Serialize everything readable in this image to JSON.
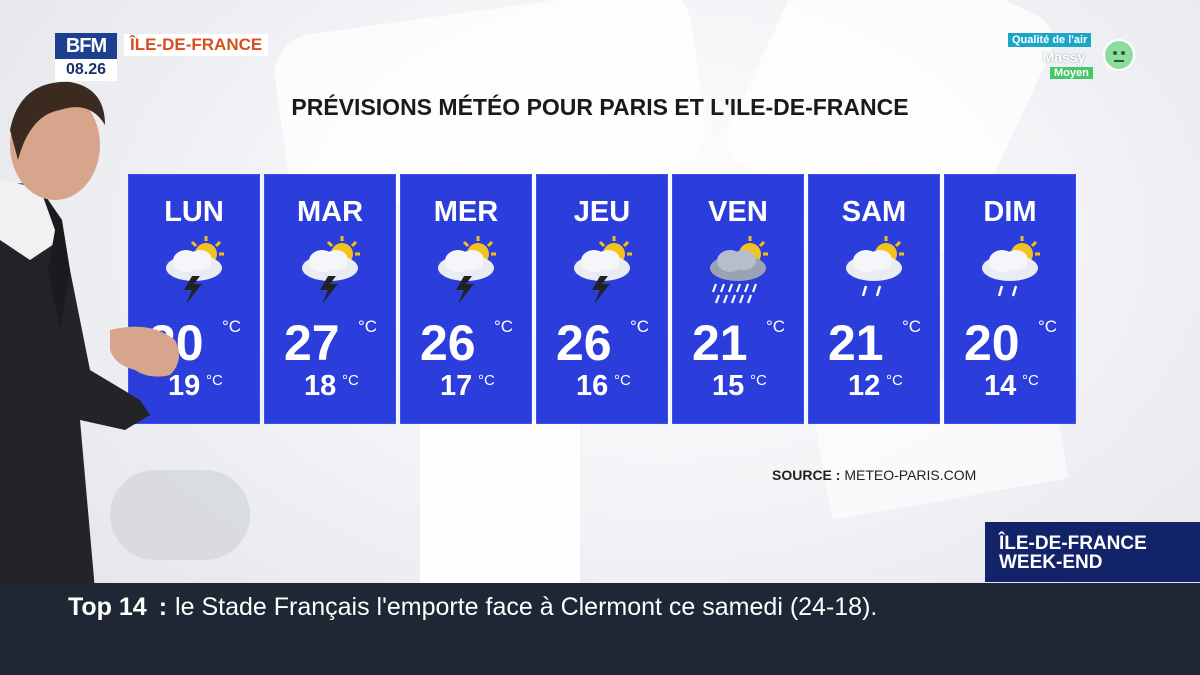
{
  "channel": {
    "logo": "BFM",
    "time": "08.26",
    "region": "ÎLE-DE-FRANCE"
  },
  "air_quality": {
    "title": "Qualité de l'air",
    "city": "Massy",
    "level": "Moyen",
    "level_color": "#47c76a",
    "icon": "neutral-face-icon"
  },
  "title": "PRÉVISIONS MÉTÉO POUR PARIS ET L'ILE-DE-FRANCE",
  "forecast": [
    {
      "day": "LUN",
      "icon": "storm-sun-icon",
      "max": "20",
      "min": "19"
    },
    {
      "day": "MAR",
      "icon": "storm-sun-icon",
      "max": "27",
      "min": "18"
    },
    {
      "day": "MER",
      "icon": "storm-sun-icon",
      "max": "26",
      "min": "17"
    },
    {
      "day": "JEU",
      "icon": "storm-sun-icon",
      "max": "26",
      "min": "16"
    },
    {
      "day": "VEN",
      "icon": "heavy-rain-sun-icon",
      "max": "21",
      "min": "15"
    },
    {
      "day": "SAM",
      "icon": "light-rain-sun-icon",
      "max": "21",
      "min": "12"
    },
    {
      "day": "DIM",
      "icon": "light-rain-sun-icon",
      "max": "20",
      "min": "14"
    }
  ],
  "unit": "°C",
  "source": {
    "label": "SOURCE :",
    "value": "METEO-PARIS.COM"
  },
  "show_tag": {
    "line1": "ÎLE-DE-FRANCE",
    "line2": "WEEK-END"
  },
  "ticker": {
    "label": "Top 14",
    "separator": ":",
    "text": "le Stade Français l'emporte face à Clermont ce samedi (24-18)."
  },
  "colors": {
    "panel": "#2b3edb",
    "ticker_bg": "#1e2733",
    "show_tag_bg": "#13236a",
    "region_text": "#d64f1f"
  }
}
